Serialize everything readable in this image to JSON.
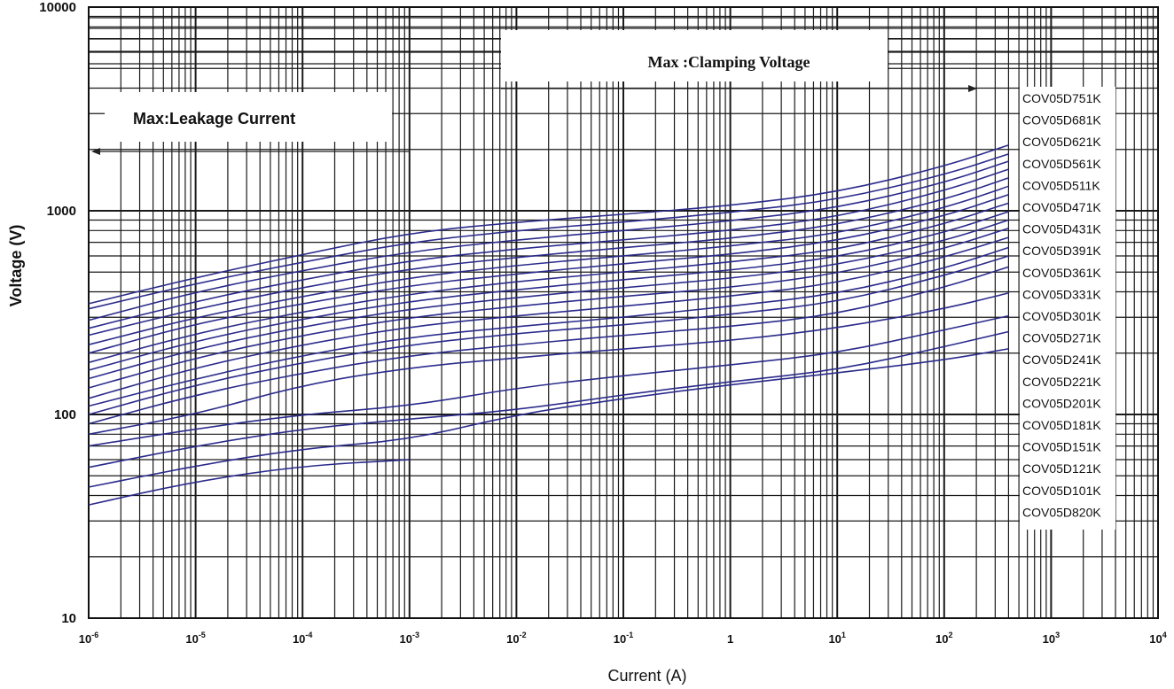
{
  "chart_data": {
    "type": "line",
    "xlabel": "Current (A)",
    "ylabel": "Voltage (V)",
    "x_scale": "log",
    "y_scale": "log",
    "xlim": [
      1e-06,
      10000
    ],
    "ylim": [
      10,
      10000
    ],
    "grid": true,
    "x_ticks": [
      {
        "base": "10",
        "exp": "-6"
      },
      {
        "base": "10",
        "exp": "-5"
      },
      {
        "base": "10",
        "exp": "-4"
      },
      {
        "base": "10",
        "exp": "-3"
      },
      {
        "base": "10",
        "exp": "-2"
      },
      {
        "base": "10",
        "exp": "-1"
      },
      {
        "base": "1",
        "exp": ""
      },
      {
        "base": "10",
        "exp": "1"
      },
      {
        "base": "10",
        "exp": "2"
      },
      {
        "base": "10",
        "exp": "3"
      },
      {
        "base": "10",
        "exp": "4"
      }
    ],
    "y_ticks": [
      "10",
      "100",
      "1000",
      "10000"
    ],
    "annotations": {
      "clamping": "Max :Clamping Voltage",
      "leakage": "Max:Leakage Current"
    },
    "line_color": "#2b2b8c",
    "legend_placement": "right",
    "series": [
      {
        "name": "COV05D751K",
        "points": [
          [
            1e-06,
            350
          ],
          [
            1e-05,
            470
          ],
          [
            0.0001,
            610
          ],
          [
            0.001,
            780
          ],
          [
            0.01,
            880
          ],
          [
            0.1,
            960
          ],
          [
            1,
            1060
          ],
          [
            10,
            1230
          ],
          [
            100,
            1650
          ],
          [
            400,
            2100
          ]
        ]
      },
      {
        "name": "COV05D681K",
        "points": [
          [
            1e-06,
            330
          ],
          [
            1e-05,
            440
          ],
          [
            0.0001,
            560
          ],
          [
            0.001,
            700
          ],
          [
            0.01,
            800
          ],
          [
            0.1,
            880
          ],
          [
            1,
            980
          ],
          [
            10,
            1130
          ],
          [
            100,
            1500
          ],
          [
            400,
            1900
          ]
        ]
      },
      {
        "name": "COV05D621K",
        "points": [
          [
            1e-06,
            290
          ],
          [
            1e-05,
            400
          ],
          [
            0.0001,
            510
          ],
          [
            0.001,
            630
          ],
          [
            0.01,
            720
          ],
          [
            0.1,
            800
          ],
          [
            1,
            890
          ],
          [
            10,
            1030
          ],
          [
            100,
            1370
          ],
          [
            400,
            1750
          ]
        ]
      },
      {
        "name": "COV05D561K",
        "points": [
          [
            1e-06,
            265
          ],
          [
            1e-05,
            360
          ],
          [
            0.0001,
            460
          ],
          [
            0.001,
            570
          ],
          [
            0.01,
            650
          ],
          [
            0.1,
            720
          ],
          [
            1,
            800
          ],
          [
            10,
            930
          ],
          [
            100,
            1250
          ],
          [
            400,
            1600
          ]
        ]
      },
      {
        "name": "COV05D511K",
        "points": [
          [
            1e-06,
            245
          ],
          [
            1e-05,
            330
          ],
          [
            0.0001,
            420
          ],
          [
            0.001,
            520
          ],
          [
            0.01,
            590
          ],
          [
            0.1,
            660
          ],
          [
            1,
            730
          ],
          [
            10,
            850
          ],
          [
            100,
            1130
          ],
          [
            400,
            1450
          ]
        ]
      },
      {
        "name": "COV05D471K",
        "points": [
          [
            1e-06,
            220
          ],
          [
            1e-05,
            300
          ],
          [
            0.0001,
            380
          ],
          [
            0.001,
            470
          ],
          [
            0.01,
            540
          ],
          [
            0.1,
            600
          ],
          [
            1,
            670
          ],
          [
            10,
            770
          ],
          [
            100,
            1030
          ],
          [
            400,
            1320
          ]
        ]
      },
      {
        "name": "COV05D431K",
        "points": [
          [
            1e-06,
            200
          ],
          [
            1e-05,
            280
          ],
          [
            0.0001,
            350
          ],
          [
            0.001,
            430
          ],
          [
            0.01,
            490
          ],
          [
            0.1,
            550
          ],
          [
            1,
            610
          ],
          [
            10,
            710
          ],
          [
            100,
            940
          ],
          [
            400,
            1200
          ]
        ]
      },
      {
        "name": "COV05D391K",
        "points": [
          [
            1e-06,
            180
          ],
          [
            1e-05,
            250
          ],
          [
            0.0001,
            320
          ],
          [
            0.001,
            390
          ],
          [
            0.01,
            450
          ],
          [
            0.1,
            500
          ],
          [
            1,
            560
          ],
          [
            10,
            640
          ],
          [
            100,
            860
          ],
          [
            400,
            1090
          ]
        ]
      },
      {
        "name": "COV05D361K",
        "points": [
          [
            1e-06,
            165
          ],
          [
            1e-05,
            230
          ],
          [
            0.0001,
            295
          ],
          [
            0.001,
            360
          ],
          [
            0.01,
            410
          ],
          [
            0.1,
            460
          ],
          [
            1,
            510
          ],
          [
            10,
            590
          ],
          [
            100,
            780
          ],
          [
            400,
            990
          ]
        ]
      },
      {
        "name": "COV05D331K",
        "points": [
          [
            1e-06,
            150
          ],
          [
            1e-05,
            210
          ],
          [
            0.0001,
            270
          ],
          [
            0.001,
            330
          ],
          [
            0.01,
            375
          ],
          [
            0.1,
            420
          ],
          [
            1,
            465
          ],
          [
            10,
            540
          ],
          [
            100,
            710
          ],
          [
            400,
            900
          ]
        ]
      },
      {
        "name": "COV05D301K",
        "points": [
          [
            1e-06,
            135
          ],
          [
            1e-05,
            190
          ],
          [
            0.0001,
            245
          ],
          [
            0.001,
            300
          ],
          [
            0.01,
            340
          ],
          [
            0.1,
            380
          ],
          [
            1,
            420
          ],
          [
            10,
            490
          ],
          [
            100,
            650
          ],
          [
            400,
            820
          ]
        ]
      },
      {
        "name": "COV05D271K",
        "points": [
          [
            1e-06,
            120
          ],
          [
            1e-05,
            170
          ],
          [
            0.0001,
            220
          ],
          [
            0.001,
            270
          ],
          [
            0.01,
            305
          ],
          [
            0.1,
            340
          ],
          [
            1,
            380
          ],
          [
            10,
            440
          ],
          [
            100,
            590
          ],
          [
            400,
            740
          ]
        ]
      },
      {
        "name": "COV05D241K",
        "points": [
          [
            1e-06,
            110
          ],
          [
            1e-05,
            150
          ],
          [
            0.0001,
            195
          ],
          [
            0.001,
            240
          ],
          [
            0.01,
            270
          ],
          [
            0.1,
            300
          ],
          [
            1,
            340
          ],
          [
            10,
            390
          ],
          [
            100,
            520
          ],
          [
            400,
            660
          ]
        ]
      },
      {
        "name": "COV05D221K",
        "points": [
          [
            1e-06,
            100
          ],
          [
            1e-05,
            140
          ],
          [
            0.0001,
            180
          ],
          [
            0.001,
            220
          ],
          [
            0.01,
            250
          ],
          [
            0.1,
            275
          ],
          [
            1,
            310
          ],
          [
            10,
            355
          ],
          [
            100,
            480
          ],
          [
            400,
            600
          ]
        ]
      },
      {
        "name": "COV05D201K",
        "points": [
          [
            1e-06,
            90
          ],
          [
            1e-05,
            125
          ],
          [
            0.0001,
            160
          ],
          [
            0.001,
            195
          ],
          [
            0.01,
            220
          ],
          [
            0.1,
            245
          ],
          [
            1,
            270
          ],
          [
            10,
            310
          ],
          [
            100,
            420
          ],
          [
            400,
            530
          ]
        ]
      },
      {
        "name": "COV05D181K",
        "points": [
          [
            1e-06,
            80
          ],
          [
            1e-05,
            100
          ],
          [
            0.0001,
            140
          ],
          [
            0.001,
            170
          ],
          [
            0.01,
            190
          ],
          [
            0.1,
            210
          ],
          [
            1,
            230
          ],
          [
            10,
            265
          ],
          [
            100,
            330
          ],
          [
            400,
            395
          ]
        ]
      },
      {
        "name": "COV05D151K",
        "points": [
          [
            1e-06,
            70
          ],
          [
            1e-05,
            85
          ],
          [
            0.0001,
            100
          ],
          [
            0.001,
            110
          ],
          [
            0.01,
            135
          ],
          [
            0.1,
            155
          ],
          [
            1,
            175
          ],
          [
            10,
            200
          ],
          [
            100,
            260
          ],
          [
            400,
            305
          ]
        ]
      },
      {
        "name": "COV05D121K",
        "points": [
          [
            1e-06,
            55
          ],
          [
            1e-05,
            70
          ],
          [
            0.0001,
            85
          ],
          [
            0.001,
            95
          ],
          [
            0.01,
            105
          ],
          [
            0.1,
            125
          ],
          [
            1,
            145
          ],
          [
            10,
            165
          ],
          [
            100,
            215
          ],
          [
            400,
            255
          ]
        ]
      },
      {
        "name": "COV05D101K",
        "points": [
          [
            1e-06,
            44
          ],
          [
            1e-05,
            56
          ],
          [
            0.0001,
            68
          ],
          [
            0.001,
            75
          ],
          [
            0.01,
            100
          ],
          [
            0.1,
            120
          ],
          [
            1,
            140
          ],
          [
            10,
            160
          ],
          [
            100,
            185
          ],
          [
            400,
            210
          ]
        ]
      },
      {
        "name": "COV05D820K",
        "points": [
          [
            1e-06,
            36
          ],
          [
            1e-05,
            47
          ],
          [
            0.0001,
            56
          ],
          [
            0.001,
            60
          ]
        ]
      }
    ]
  }
}
